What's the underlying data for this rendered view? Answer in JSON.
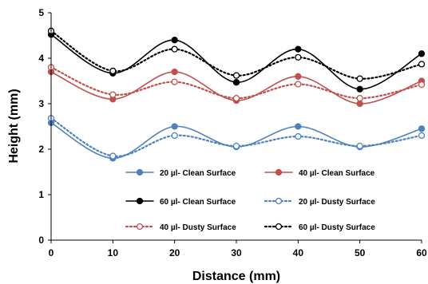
{
  "chart_data": {
    "type": "line",
    "xlabel": "Distance (mm)",
    "ylabel": "Height (mm)",
    "xlim": [
      0,
      60
    ],
    "ylim": [
      0,
      5
    ],
    "x_ticks": [
      "0",
      "10",
      "20",
      "30",
      "40",
      "50",
      "60"
    ],
    "y_ticks": [
      "0",
      "1",
      "2",
      "3",
      "4",
      "5"
    ],
    "grid": false,
    "legend_position": "bottom-center",
    "x": [
      0,
      10,
      20,
      30,
      40,
      50,
      60
    ],
    "series": [
      {
        "name": "20 µl- Clean Surface",
        "values": [
          2.58,
          1.8,
          2.5,
          2.05,
          2.5,
          2.05,
          2.45
        ],
        "color": "#4f81bd",
        "style": "solid",
        "marker": "filled"
      },
      {
        "name": "40 µl- Clean Surface",
        "values": [
          3.7,
          3.1,
          3.7,
          3.07,
          3.6,
          3.0,
          3.5
        ],
        "color": "#c0504d",
        "style": "solid",
        "marker": "filled"
      },
      {
        "name": "60 µl- Clean Surface",
        "values": [
          4.52,
          3.67,
          4.4,
          3.47,
          4.2,
          3.32,
          4.1
        ],
        "color": "#000000",
        "style": "solid",
        "marker": "filled"
      },
      {
        "name": "20 µl- Dusty Surface",
        "values": [
          2.68,
          1.85,
          2.3,
          2.07,
          2.28,
          2.07,
          2.3
        ],
        "color": "#4f81bd",
        "style": "dotted",
        "marker": "open"
      },
      {
        "name": "40 µl- Dusty Surface",
        "values": [
          3.8,
          3.2,
          3.48,
          3.12,
          3.43,
          3.12,
          3.42
        ],
        "color": "#c0504d",
        "style": "dotted",
        "marker": "open"
      },
      {
        "name": "60 µl- Dusty Surface",
        "values": [
          4.6,
          3.72,
          4.2,
          3.62,
          4.02,
          3.55,
          3.87
        ],
        "color": "#000000",
        "style": "dotted",
        "marker": "open"
      }
    ]
  }
}
